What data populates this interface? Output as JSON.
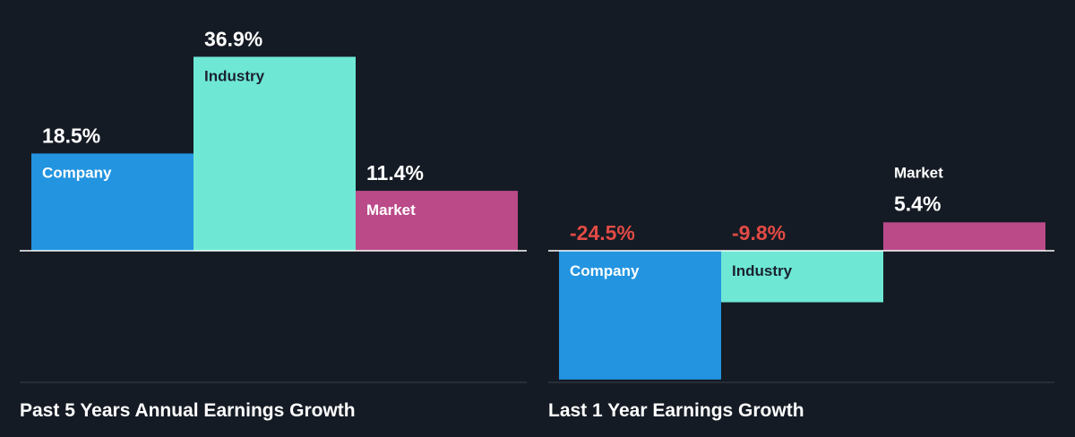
{
  "colors": {
    "background": "#151b24",
    "company": "#2394e0",
    "industry": "#6ee8d5",
    "market": "#bb4a89",
    "positive_label": "#ffffff",
    "negative_label": "#e24a45",
    "baseline": "#ffffff",
    "axis_line": "#3a424d"
  },
  "chart_data": [
    {
      "type": "bar",
      "title": "Past 5 Years Annual Earnings Growth",
      "categories": [
        "Company",
        "Industry",
        "Market"
      ],
      "values": [
        18.5,
        36.9,
        11.4
      ],
      "value_labels": [
        "18.5%",
        "36.9%",
        "11.4%"
      ],
      "unit": "%"
    },
    {
      "type": "bar",
      "title": "Last 1 Year Earnings Growth",
      "categories": [
        "Company",
        "Industry",
        "Market"
      ],
      "values": [
        -24.5,
        -9.8,
        5.4
      ],
      "value_labels": [
        "-24.5%",
        "-9.8%",
        "5.4%"
      ],
      "unit": "%"
    }
  ]
}
